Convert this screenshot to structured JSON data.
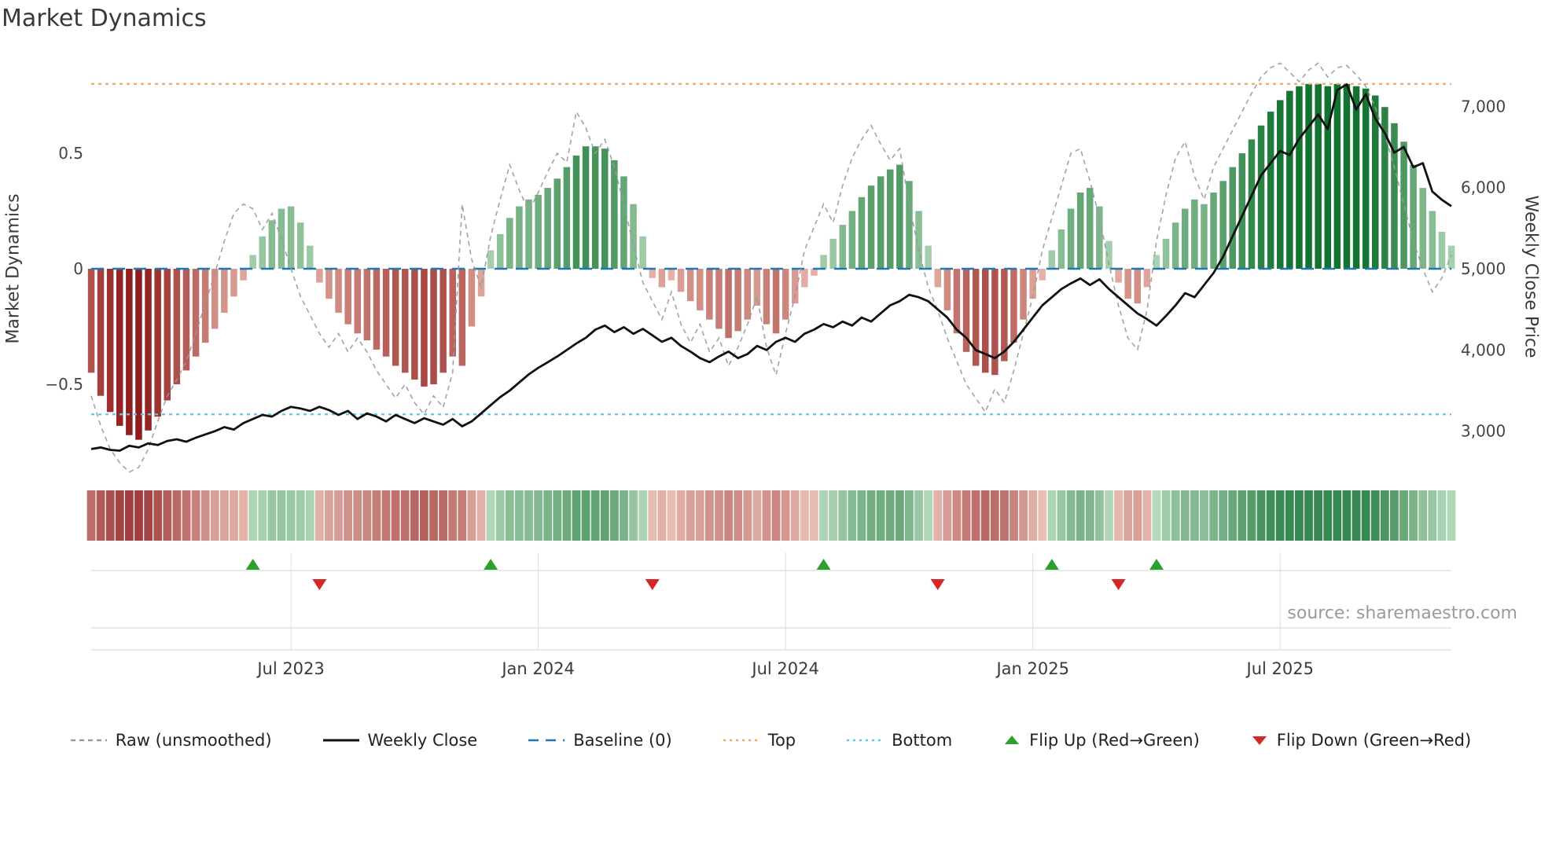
{
  "title": "Market Dynamics",
  "source_note": "source: sharemaestro.com",
  "axes": {
    "left_label": "Market Dynamics",
    "right_label": "Weekly Close Price",
    "left_tick_labels": [
      "−0.5",
      "0",
      "0.5"
    ],
    "left_tick_values": [
      -0.5,
      0,
      0.5
    ],
    "right_tick_labels": [
      "3,000",
      "4,000",
      "5,000",
      "6,000",
      "7,000"
    ],
    "right_tick_values": [
      3000,
      4000,
      5000,
      6000,
      7000
    ],
    "x_tick_labels": [
      "Jul 2023",
      "Jan 2024",
      "Jul 2024",
      "Jan 2025",
      "Jul 2025"
    ],
    "x_tick_weeks": [
      21,
      47,
      73,
      99,
      125
    ]
  },
  "legend": [
    {
      "label": "Raw (unsmoothed)",
      "type": "dashed-line",
      "color": "#999999",
      "name": "raw-line-sample"
    },
    {
      "label": "Weekly Close",
      "type": "solid-line",
      "color": "#111111",
      "name": "weekly-close-sample"
    },
    {
      "label": "Baseline (0)",
      "type": "long-dash-line",
      "color": "#1f77b4",
      "name": "baseline-sample"
    },
    {
      "label": "Top",
      "type": "dotted-line",
      "color": "#f0a860",
      "name": "top-line-sample"
    },
    {
      "label": "Bottom",
      "type": "dotted-line",
      "color": "#5bc8e8",
      "name": "bottom-line-sample"
    },
    {
      "label": "Flip Up (Red→Green)",
      "type": "triangle-up",
      "color": "#2ca02c",
      "name": "flip-up-sample"
    },
    {
      "label": "Flip Down (Green→Red)",
      "type": "triangle-down",
      "color": "#d62728",
      "name": "flip-down-sample"
    }
  ],
  "colors": {
    "bar_green_dark": "#127330",
    "bar_green_light": "#c5e4c7",
    "bar_red_dark": "#8c1717",
    "bar_red_light": "#f2c8ba",
    "raw_line": "#999999",
    "close_line": "#111111",
    "baseline": "#1f77b4",
    "top_line": "#f0a860",
    "bottom_line": "#5bc8e8",
    "flip_up": "#2ca02c",
    "flip_down": "#d62728",
    "grid": "#dcdcdc",
    "tick_text": "#444444",
    "x_tick_text": "#3a3a3a"
  },
  "chart_data": {
    "type": "bar+line",
    "x_unit": "weeks",
    "n_points": 144,
    "left_ylim": [
      -0.93,
      0.93
    ],
    "right_ylim": [
      2470,
      7630
    ],
    "baseline": 0,
    "top_level": 0.8,
    "bottom_level": -0.63,
    "flip_up_weeks": [
      17,
      42,
      77,
      101,
      112
    ],
    "flip_down_weeks": [
      24,
      59,
      89,
      108
    ],
    "series": [
      {
        "name": "Market Dynamics oscillator (bars)",
        "axis": "left",
        "values": [
          -0.45,
          -0.55,
          -0.62,
          -0.68,
          -0.72,
          -0.74,
          -0.7,
          -0.64,
          -0.57,
          -0.5,
          -0.44,
          -0.38,
          -0.32,
          -0.26,
          -0.19,
          -0.12,
          -0.05,
          0.06,
          0.14,
          0.21,
          0.26,
          0.27,
          0.2,
          0.1,
          -0.06,
          -0.13,
          -0.19,
          -0.24,
          -0.28,
          -0.31,
          -0.35,
          -0.38,
          -0.42,
          -0.45,
          -0.48,
          -0.51,
          -0.5,
          -0.45,
          -0.38,
          -0.42,
          -0.25,
          -0.12,
          0.08,
          0.15,
          0.22,
          0.27,
          0.3,
          0.32,
          0.35,
          0.39,
          0.44,
          0.49,
          0.53,
          0.53,
          0.52,
          0.47,
          0.4,
          0.28,
          0.14,
          -0.04,
          -0.08,
          -0.05,
          -0.1,
          -0.14,
          -0.18,
          -0.22,
          -0.26,
          -0.3,
          -0.27,
          -0.22,
          -0.16,
          -0.24,
          -0.28,
          -0.22,
          -0.15,
          -0.08,
          -0.03,
          0.06,
          0.13,
          0.19,
          0.25,
          0.31,
          0.36,
          0.4,
          0.43,
          0.45,
          0.38,
          0.25,
          0.1,
          -0.08,
          -0.18,
          -0.28,
          -0.36,
          -0.42,
          -0.45,
          -0.46,
          -0.4,
          -0.32,
          -0.22,
          -0.13,
          -0.05,
          0.08,
          0.17,
          0.26,
          0.33,
          0.35,
          0.27,
          0.12,
          -0.06,
          -0.13,
          -0.15,
          -0.08,
          0.06,
          0.13,
          0.2,
          0.26,
          0.3,
          0.28,
          0.33,
          0.38,
          0.44,
          0.5,
          0.56,
          0.62,
          0.68,
          0.73,
          0.77,
          0.79,
          0.8,
          0.8,
          0.79,
          0.8,
          0.8,
          0.79,
          0.78,
          0.75,
          0.7,
          0.63,
          0.55,
          0.45,
          0.35,
          0.25,
          0.16,
          0.1
        ]
      },
      {
        "name": "Raw (unsmoothed)",
        "axis": "left",
        "values": [
          -0.55,
          -0.68,
          -0.78,
          -0.84,
          -0.88,
          -0.86,
          -0.78,
          -0.66,
          -0.55,
          -0.48,
          -0.4,
          -0.28,
          -0.15,
          -0.02,
          0.12,
          0.24,
          0.28,
          0.26,
          0.17,
          0.24,
          0.13,
          0.0,
          -0.12,
          -0.2,
          -0.28,
          -0.34,
          -0.28,
          -0.36,
          -0.3,
          -0.36,
          -0.44,
          -0.5,
          -0.56,
          -0.5,
          -0.58,
          -0.63,
          -0.55,
          -0.6,
          -0.45,
          0.28,
          0.04,
          -0.08,
          0.14,
          0.3,
          0.45,
          0.34,
          0.25,
          0.33,
          0.42,
          0.5,
          0.46,
          0.68,
          0.61,
          0.5,
          0.56,
          0.44,
          0.28,
          0.1,
          -0.06,
          -0.14,
          -0.22,
          -0.1,
          -0.24,
          -0.32,
          -0.24,
          -0.36,
          -0.3,
          -0.42,
          -0.34,
          -0.24,
          -0.12,
          -0.34,
          -0.46,
          -0.28,
          -0.12,
          0.08,
          0.18,
          0.28,
          0.2,
          0.36,
          0.48,
          0.56,
          0.62,
          0.54,
          0.47,
          0.52,
          0.28,
          0.08,
          -0.08,
          -0.18,
          -0.3,
          -0.4,
          -0.5,
          -0.56,
          -0.62,
          -0.52,
          -0.58,
          -0.44,
          -0.28,
          -0.12,
          0.08,
          0.22,
          0.36,
          0.5,
          0.52,
          0.38,
          0.22,
          0.02,
          -0.16,
          -0.3,
          -0.35,
          -0.18,
          0.12,
          0.32,
          0.48,
          0.55,
          0.4,
          0.3,
          0.44,
          0.52,
          0.6,
          0.68,
          0.76,
          0.83,
          0.87,
          0.89,
          0.85,
          0.81,
          0.86,
          0.89,
          0.83,
          0.87,
          0.88,
          0.84,
          0.79,
          0.7,
          0.58,
          0.44,
          0.28,
          0.12,
          0.0,
          -0.1,
          -0.04,
          0.06
        ]
      },
      {
        "name": "Weekly Close",
        "axis": "right",
        "values": [
          2780,
          2800,
          2770,
          2760,
          2820,
          2800,
          2850,
          2830,
          2880,
          2900,
          2870,
          2920,
          2960,
          3000,
          3050,
          3020,
          3100,
          3150,
          3200,
          3180,
          3250,
          3300,
          3280,
          3250,
          3300,
          3260,
          3200,
          3250,
          3150,
          3220,
          3180,
          3120,
          3200,
          3150,
          3100,
          3160,
          3120,
          3080,
          3150,
          3060,
          3120,
          3220,
          3320,
          3420,
          3500,
          3600,
          3700,
          3780,
          3850,
          3920,
          4000,
          4080,
          4150,
          4250,
          4300,
          4220,
          4280,
          4200,
          4260,
          4180,
          4100,
          4150,
          4050,
          3980,
          3900,
          3850,
          3920,
          3980,
          3900,
          3950,
          4050,
          4000,
          4100,
          4150,
          4100,
          4200,
          4250,
          4320,
          4280,
          4350,
          4300,
          4400,
          4350,
          4450,
          4550,
          4600,
          4680,
          4650,
          4600,
          4500,
          4400,
          4250,
          4150,
          4000,
          3950,
          3900,
          3980,
          4100,
          4250,
          4400,
          4550,
          4650,
          4750,
          4820,
          4880,
          4800,
          4870,
          4750,
          4650,
          4550,
          4450,
          4380,
          4300,
          4420,
          4550,
          4700,
          4650,
          4800,
          4950,
          5150,
          5400,
          5650,
          5900,
          6150,
          6300,
          6450,
          6400,
          6600,
          6750,
          6900,
          6720,
          7200,
          7270,
          6960,
          7150,
          6850,
          6670,
          6430,
          6500,
          6250,
          6300,
          5950,
          5850,
          5770
        ]
      }
    ]
  }
}
